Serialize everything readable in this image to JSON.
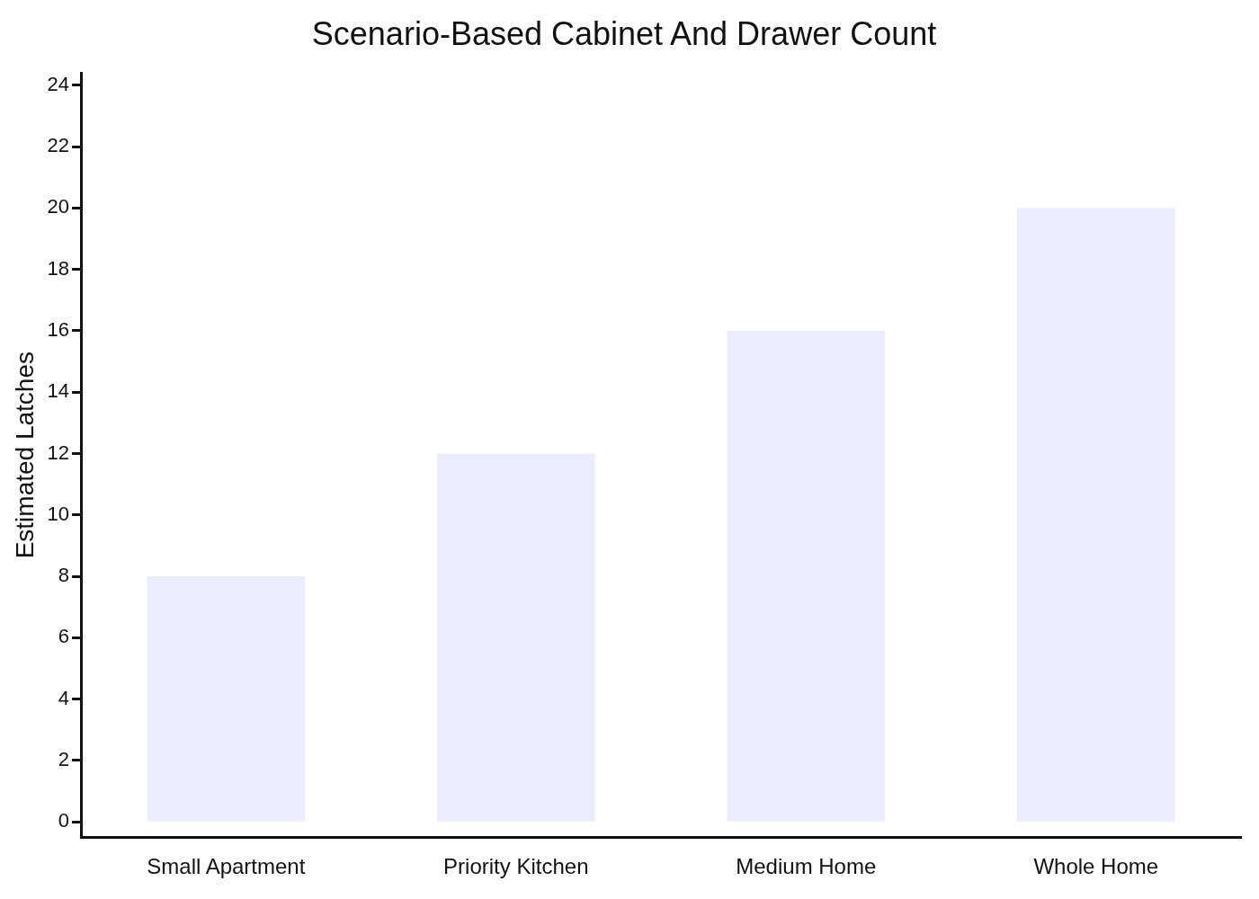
{
  "chart_data": {
    "type": "bar",
    "title": "Scenario-Based Cabinet And Drawer Count",
    "ylabel": "Estimated Latches",
    "categories": [
      "Small Apartment",
      "Priority Kitchen",
      "Medium Home",
      "Whole Home"
    ],
    "values": [
      8,
      12,
      16,
      20
    ],
    "color": "#ececff",
    "ylim": [
      -0.5,
      24.4
    ],
    "yticks": [
      0,
      2,
      4,
      6,
      8,
      10,
      12,
      14,
      16,
      18,
      20,
      22,
      24
    ],
    "grid": false,
    "legend": false
  }
}
